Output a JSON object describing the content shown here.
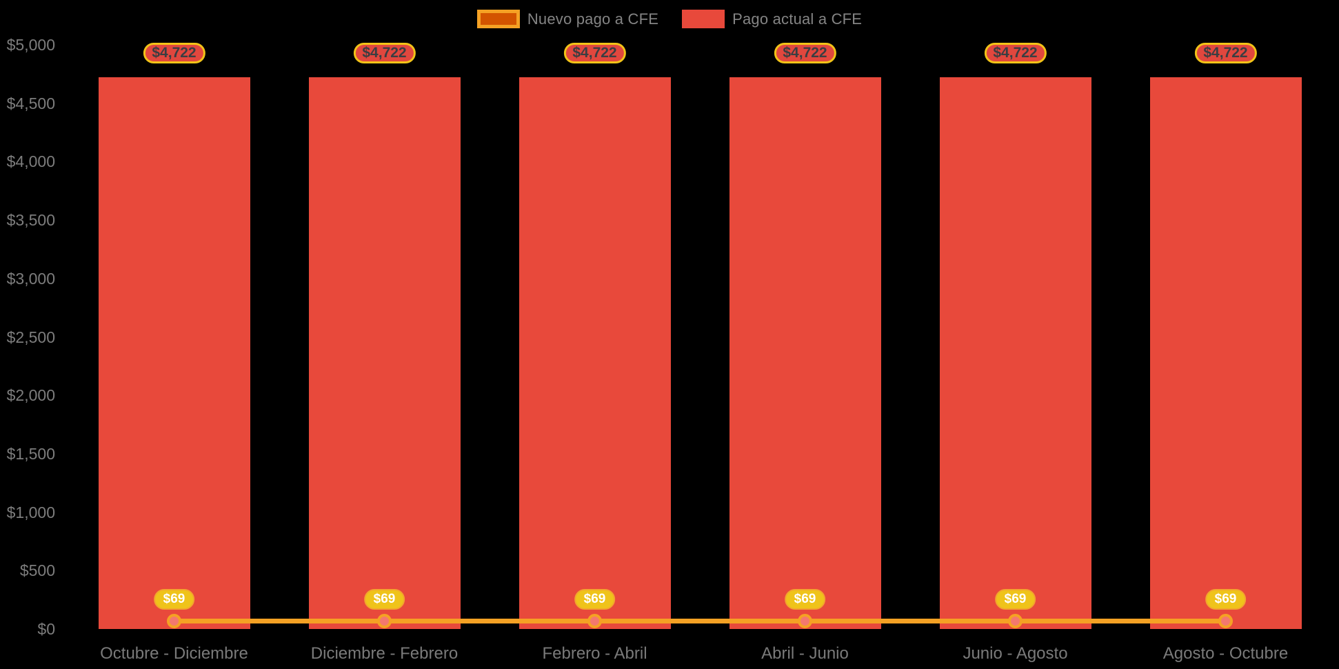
{
  "background": "#000000",
  "legend": {
    "position": "top-center",
    "items": [
      {
        "label": "Nuevo pago a CFE",
        "swatch_fill": "#D35400",
        "swatch_border": "#F5A124"
      },
      {
        "label": "Pago actual a CFE",
        "swatch_fill": "#E8493B",
        "swatch_border": ""
      }
    ]
  },
  "chart_data": {
    "type": "bar",
    "title": "",
    "xlabel": "",
    "ylabel": "",
    "categories": [
      "Octubre - Diciembre",
      "Diciembre - Febrero",
      "Febrero - Abril",
      "Abril - Junio",
      "Junio - Agosto",
      "Agosto - Octubre"
    ],
    "series": [
      {
        "name": "Pago actual a CFE",
        "type": "bar",
        "color": "#E8493B",
        "values": [
          4722,
          4722,
          4722,
          4722,
          4722,
          4722
        ],
        "point_labels": [
          "$4,722",
          "$4,722",
          "$4,722",
          "$4,722",
          "$4,722",
          "$4,722"
        ],
        "label_bg": "#E1473E",
        "label_border": "#F2C318",
        "label_text_color": "#3A3E42"
      },
      {
        "name": "Nuevo pago a CFE",
        "type": "line",
        "color": "#F5A124",
        "marker_fill": "#F4786E",
        "values": [
          69,
          69,
          69,
          69,
          69,
          69
        ],
        "point_labels": [
          "$69",
          "$69",
          "$69",
          "$69",
          "$69",
          "$69"
        ],
        "label_bg": "#EFC31A",
        "label_text_color": "#FFFFFF"
      }
    ],
    "ylim": [
      0,
      5000
    ],
    "yticks": [
      {
        "value": 0,
        "label": "$0"
      },
      {
        "value": 500,
        "label": "$500"
      },
      {
        "value": 1000,
        "label": "$1,000"
      },
      {
        "value": 1500,
        "label": "$1,500"
      },
      {
        "value": 2000,
        "label": "$2,000"
      },
      {
        "value": 2500,
        "label": "$2,500"
      },
      {
        "value": 3000,
        "label": "$3,000"
      },
      {
        "value": 3500,
        "label": "$3,500"
      },
      {
        "value": 4000,
        "label": "$4,000"
      },
      {
        "value": 4500,
        "label": "$4,500"
      },
      {
        "value": 5000,
        "label": "$5,000"
      }
    ],
    "grid": false,
    "axis_text_color": "#7d7d7d",
    "legend_position": "top-center"
  }
}
